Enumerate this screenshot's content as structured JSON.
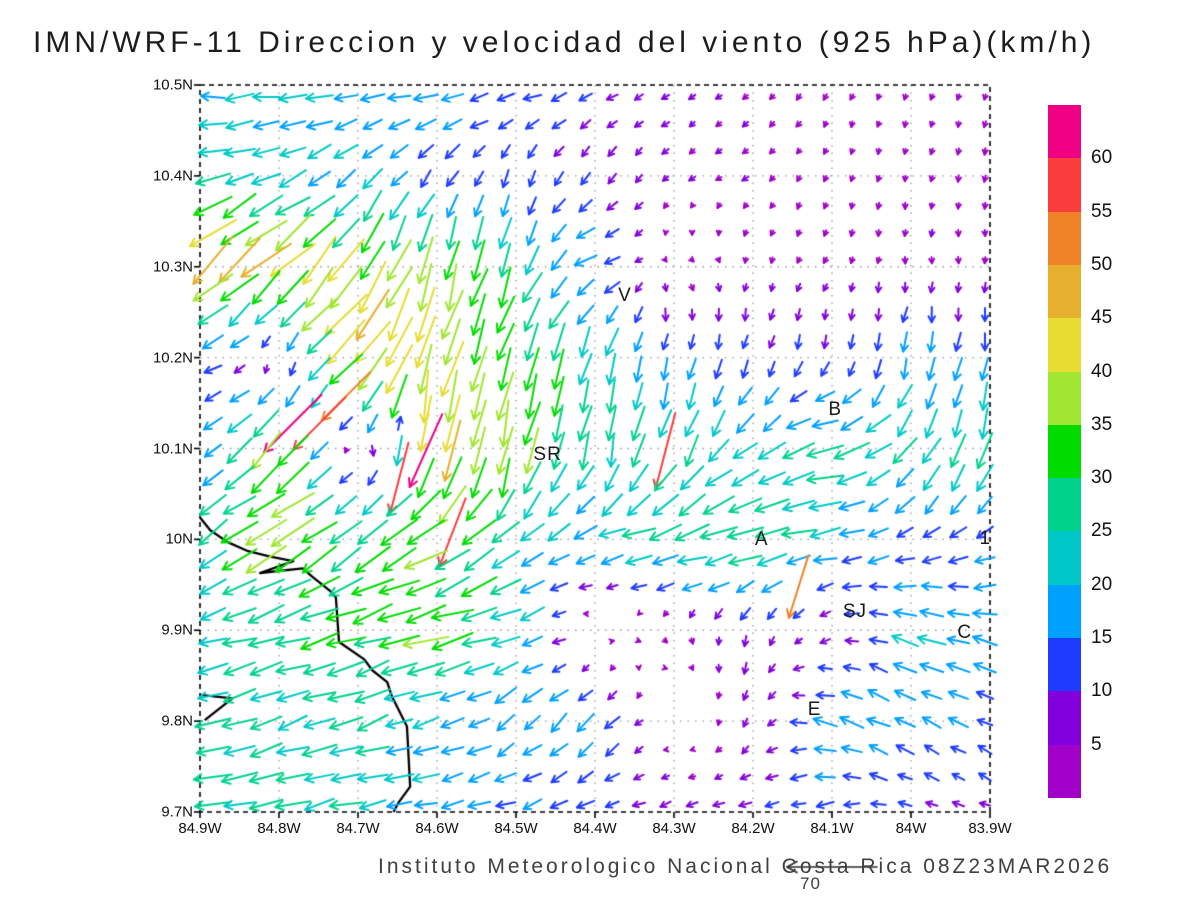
{
  "title": "IMN/WRF-11 Direccion y velocidad del viento (925 hPa)(km/h)",
  "footer": {
    "caption": "Instituto Meteorologico Nacional Costa Rica 08Z23MAR2026",
    "reference_vector_label": "70",
    "reference_vector_speed_kmh": 70
  },
  "axes": {
    "y_tick_labels": [
      "10.5N",
      "10.4N",
      "10.3N",
      "10.2N",
      "10.1N",
      "10N",
      "9.9N",
      "9.8N",
      "9.7N"
    ],
    "x_tick_labels": [
      "84.9W",
      "84.8W",
      "84.7W",
      "84.6W",
      "84.5W",
      "84.4W",
      "84.3W",
      "84.2W",
      "84.1W",
      "84W",
      "83.9W"
    ],
    "lat_min": 9.7,
    "lat_max": 10.5,
    "lon_w_min": 83.9,
    "lon_w_max": 84.9,
    "grid_style": "dotted"
  },
  "colorbar": {
    "levels": [
      5,
      10,
      15,
      20,
      25,
      30,
      35,
      40,
      45,
      50,
      55,
      60
    ],
    "labels_top_to_bottom": [
      "60",
      "55",
      "50",
      "45",
      "40",
      "35",
      "30",
      "25",
      "20",
      "15",
      "10",
      "5"
    ],
    "colors_low_to_high": [
      "#A000C8",
      "#8200DC",
      "#1E3CFF",
      "#00A0FF",
      "#00C8C8",
      "#00D28C",
      "#00DC00",
      "#A0E632",
      "#E6DC32",
      "#E6AF2D",
      "#F08228",
      "#FA3C3C",
      "#F00082"
    ]
  },
  "city_labels": [
    {
      "text": "V",
      "lon_w": 84.362,
      "lat": 10.268
    },
    {
      "text": "B",
      "lon_w": 84.096,
      "lat": 10.142
    },
    {
      "text": "SR",
      "lon_w": 84.46,
      "lat": 10.093
    },
    {
      "text": "A",
      "lon_w": 84.189,
      "lat": 9.999
    },
    {
      "text": "1",
      "lon_w": 83.906,
      "lat": 10.0
    },
    {
      "text": "SJ",
      "lon_w": 84.071,
      "lat": 9.92
    },
    {
      "text": "C",
      "lon_w": 83.932,
      "lat": 9.897
    },
    {
      "text": "E",
      "lon_w": 84.122,
      "lat": 9.812
    }
  ],
  "chart_data": {
    "type": "vector_field",
    "model": "IMN/WRF-11",
    "variable": "Direccion y velocidad del viento",
    "level": "925 hPa",
    "units": "km/h",
    "valid_time": "08Z23MAR2026",
    "reference_speed_kmh": 70,
    "wind_grid": {
      "lons_w": [
        84.9,
        84.8,
        84.7,
        84.6,
        84.5,
        84.4,
        84.3,
        84.2,
        84.1,
        84.0,
        83.9
      ],
      "lats": [
        10.5,
        10.4,
        10.3,
        10.2,
        10.1,
        10.0,
        9.9,
        9.8,
        9.7
      ],
      "u": [
        [
          -20,
          -20,
          -18,
          -18,
          -15,
          -11,
          -5,
          -4,
          -2,
          -1,
          -1
        ],
        [
          -24,
          -20,
          -15,
          -8,
          -4,
          -5,
          -4,
          -4,
          -1,
          -1,
          -1
        ],
        [
          -34,
          -33,
          -20,
          -10,
          -10,
          -17,
          4,
          -1,
          -2,
          0,
          0
        ],
        [
          -18,
          4,
          -34,
          -10,
          -12,
          -8,
          -3,
          -3,
          -2,
          -3,
          -2
        ],
        [
          -9,
          -28,
          4,
          -5,
          -6,
          -5,
          -8,
          -16,
          -28,
          -15,
          -6
        ],
        [
          -20,
          -35,
          -25,
          -30,
          -18,
          -20,
          -28,
          -30,
          -20,
          -10,
          -14
        ],
        [
          -20,
          -25,
          -30,
          -33,
          -22,
          4,
          3,
          -2,
          -6,
          -20,
          -18
        ],
        [
          -26,
          -25,
          -24,
          -17,
          -13,
          -13,
          2,
          -3,
          -18,
          -15,
          -12
        ],
        [
          -27,
          -25,
          -22,
          -18,
          -15,
          -12,
          -8,
          -10,
          -12,
          -8,
          -8
        ]
      ],
      "v": [
        [
          0,
          -2,
          -2,
          -3,
          -3,
          -4,
          -3,
          -3,
          -4,
          -4,
          -4
        ],
        [
          -8,
          -8,
          -12,
          -12,
          -11,
          -9,
          -3,
          -3,
          -4,
          -4,
          -5
        ],
        [
          -32,
          -30,
          -35,
          -33,
          -26,
          -4,
          -2,
          -4,
          -4,
          -5,
          -5
        ],
        [
          -4,
          -3,
          -34,
          -42,
          -30,
          -25,
          -14,
          -12,
          -10,
          -16,
          -14
        ],
        [
          -7,
          -28,
          2,
          -45,
          -38,
          -25,
          -26,
          -12,
          -6,
          -20,
          -28
        ],
        [
          -14,
          -20,
          -18,
          -18,
          -14,
          -5,
          -8,
          -6,
          -4,
          -7,
          -6
        ],
        [
          -5,
          -8,
          -10,
          -8,
          -8,
          3,
          -3,
          -9,
          -2,
          8,
          4
        ],
        [
          -6,
          -8,
          -9,
          -6,
          -11,
          -13,
          3,
          -8,
          6,
          8,
          6
        ],
        [
          -4,
          -6,
          -5,
          -4,
          -5,
          -4,
          -3,
          -2,
          -2,
          3,
          3
        ]
      ]
    },
    "hotspots": [
      {
        "lon_w": 84.78,
        "lat": 10.118,
        "u": -44,
        "v": -44
      },
      {
        "lon_w": 84.735,
        "lat": 10.127,
        "u": -40,
        "v": -40
      },
      {
        "lon_w": 84.704,
        "lat": 10.156,
        "u": -37,
        "v": -37
      },
      {
        "lon_w": 84.624,
        "lat": 10.102,
        "u": -25,
        "v": -56
      },
      {
        "lon_w": 84.657,
        "lat": 10.068,
        "u": -14,
        "v": -54
      },
      {
        "lon_w": 84.571,
        "lat": 9.997,
        "u": -20,
        "v": -52
      },
      {
        "lon_w": 84.324,
        "lat": 10.109,
        "u": -15,
        "v": -58
      },
      {
        "lon_w": 84.153,
        "lat": 9.955,
        "u": -15,
        "v": -48
      },
      {
        "lon_w": 84.64,
        "lat": 10.115,
        "u": 2,
        "v": 10
      }
    ],
    "coastline": {
      "main": [
        [
          84.9,
          10.024
        ],
        [
          84.887,
          10.01
        ],
        [
          84.865,
          9.997
        ],
        [
          84.839,
          9.987
        ],
        [
          84.811,
          9.981
        ],
        [
          84.782,
          9.976
        ],
        [
          84.824,
          9.963
        ],
        [
          84.77,
          9.968
        ],
        [
          84.758,
          9.959
        ],
        [
          84.735,
          9.943
        ],
        [
          84.728,
          9.936
        ],
        [
          84.724,
          9.887
        ],
        [
          84.692,
          9.868
        ],
        [
          84.682,
          9.856
        ],
        [
          84.663,
          9.843
        ],
        [
          84.657,
          9.827
        ],
        [
          84.638,
          9.794
        ],
        [
          84.634,
          9.728
        ],
        [
          84.649,
          9.71
        ],
        [
          84.655,
          9.7
        ]
      ],
      "spit": [
        [
          84.9,
          9.829
        ],
        [
          84.859,
          9.825
        ],
        [
          84.894,
          9.801
        ]
      ]
    }
  }
}
